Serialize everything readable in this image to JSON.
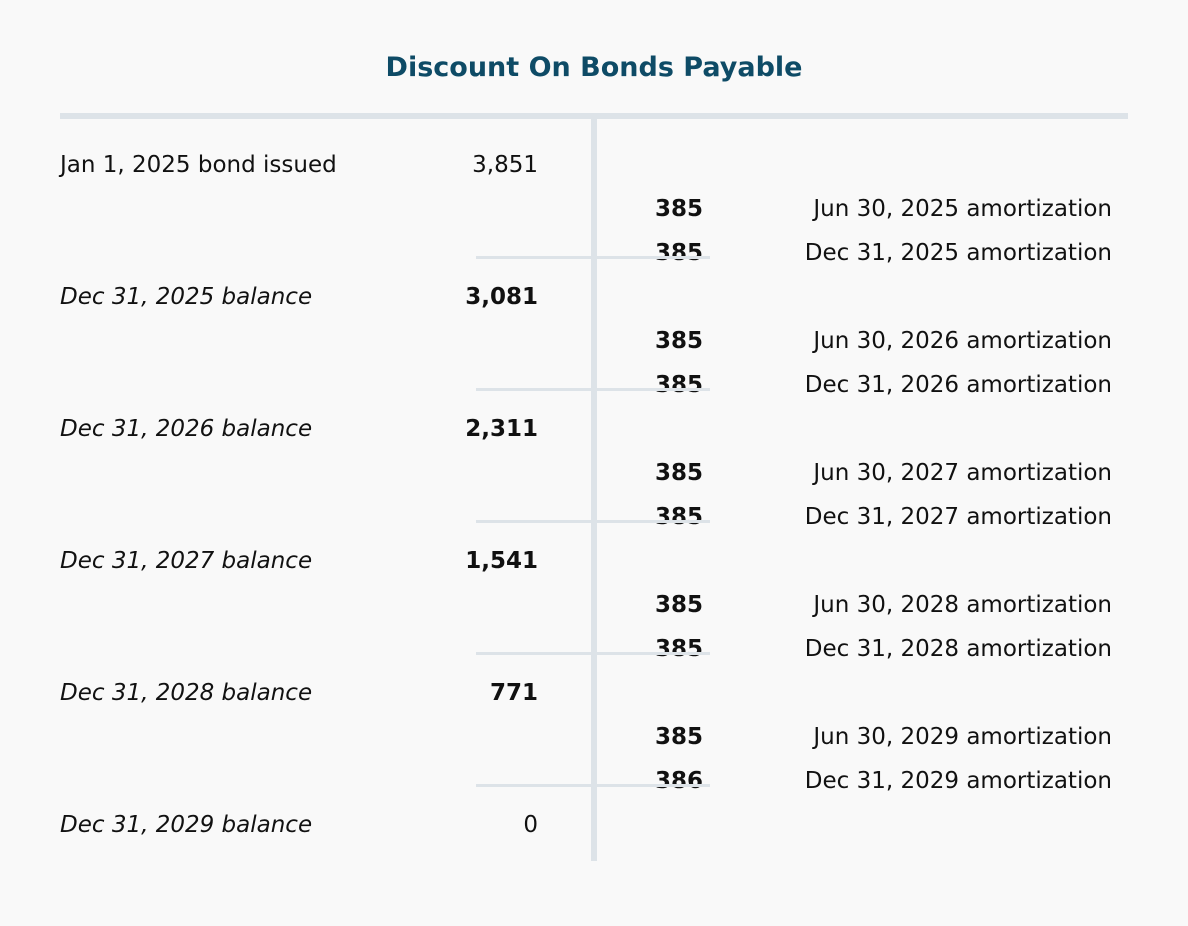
{
  "title": "Discount On Bonds Payable",
  "rows": [
    {
      "debit_label": "Jan 1, 2025 bond issued",
      "debit": "3,851"
    },
    {
      "credit": "385",
      "credit_label": "Jun 30, 2025 amortization"
    },
    {
      "credit": "385",
      "credit_label": "Dec 31, 2025 amortization"
    },
    {
      "debit_label": "Dec 31, 2025 balance",
      "debit": "3,081"
    },
    {
      "credit": "385",
      "credit_label": "Jun 30, 2026 amortization"
    },
    {
      "credit": "385",
      "credit_label": "Dec 31, 2026 amortization"
    },
    {
      "debit_label": "Dec 31, 2026 balance",
      "debit": "2,311"
    },
    {
      "credit": "385",
      "credit_label": "Jun 30, 2027 amortization"
    },
    {
      "credit": "385",
      "credit_label": "Dec 31, 2027 amortization"
    },
    {
      "debit_label": "Dec 31, 2027 balance",
      "debit": "1,541"
    },
    {
      "credit": "385",
      "credit_label": "Jun 30, 2028 amortization"
    },
    {
      "credit": "385",
      "credit_label": "Dec 31, 2028 amortization"
    },
    {
      "debit_label": "Dec 31, 2028 balance",
      "debit": "771"
    },
    {
      "credit": "385",
      "credit_label": "Jun 30, 2029 amortization"
    },
    {
      "credit": "386",
      "credit_label": "Dec 31, 2029 amortization"
    },
    {
      "debit_label": "Dec 31, 2029 balance",
      "debit": "0"
    }
  ]
}
